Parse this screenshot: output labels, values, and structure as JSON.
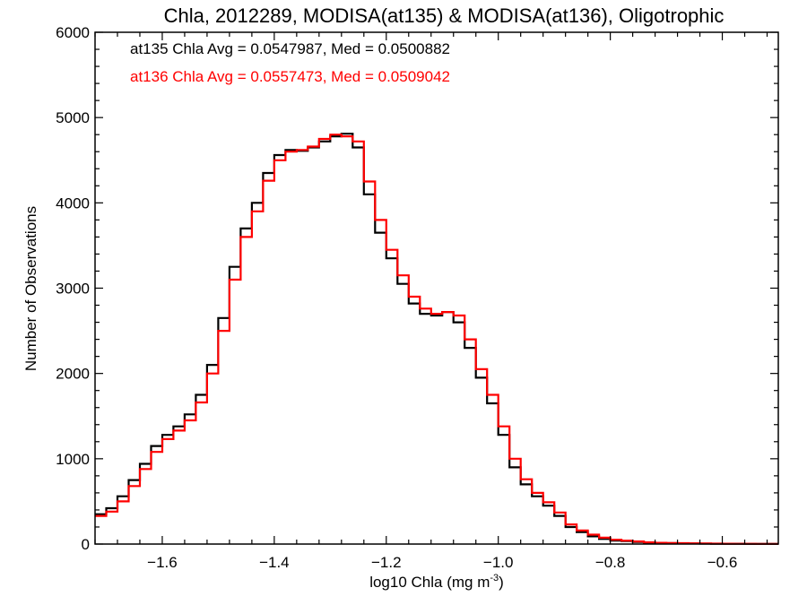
{
  "chart_data": {
    "type": "line",
    "title": "Chla, 2012289, MODISA(at135) & MODISA(at136), Oligotrophic",
    "xlabel": "log10 Chla (mg m",
    "xlabel_sup": "-3",
    "xlabel_close": ")",
    "ylabel": "Number of Observations",
    "xlim": [
      -1.72,
      -0.5
    ],
    "ylim": [
      0,
      6000
    ],
    "x_ticks": [
      -1.6,
      -1.4,
      -1.2,
      -1.0,
      -0.8,
      -0.6
    ],
    "x_tick_labels": [
      "−1.6",
      "−1.4",
      "−1.2",
      "−1.0",
      "−0.8",
      "−0.6"
    ],
    "y_ticks": [
      0,
      1000,
      2000,
      3000,
      4000,
      5000,
      6000
    ],
    "y_tick_labels": [
      "0",
      "1000",
      "2000",
      "3000",
      "4000",
      "5000",
      "6000"
    ],
    "grid": false,
    "annotations": [
      {
        "text": "at135 Chla Avg = 0.0547987, Med = 0.0500882",
        "color": "#000000"
      },
      {
        "text": "at136 Chla Avg = 0.0557473, Med = 0.0509042",
        "color": "#ff0000"
      }
    ],
    "series": [
      {
        "color": "#000000",
        "x": [
          -1.72,
          -1.7,
          -1.68,
          -1.66,
          -1.64,
          -1.62,
          -1.6,
          -1.58,
          -1.56,
          -1.54,
          -1.52,
          -1.5,
          -1.48,
          -1.46,
          -1.44,
          -1.42,
          -1.4,
          -1.38,
          -1.36,
          -1.34,
          -1.32,
          -1.3,
          -1.28,
          -1.26,
          -1.24,
          -1.22,
          -1.2,
          -1.18,
          -1.16,
          -1.14,
          -1.12,
          -1.1,
          -1.08,
          -1.06,
          -1.04,
          -1.02,
          -1.0,
          -0.98,
          -0.96,
          -0.94,
          -0.92,
          -0.9,
          -0.88,
          -0.86,
          -0.84,
          -0.82,
          -0.8,
          -0.78,
          -0.76,
          -0.74,
          -0.72,
          -0.7,
          -0.68,
          -0.66,
          -0.64,
          -0.62,
          -0.6,
          -0.58,
          -0.56,
          -0.54,
          -0.52,
          -0.5
        ],
        "y": [
          350,
          420,
          560,
          750,
          940,
          1150,
          1280,
          1380,
          1520,
          1750,
          2100,
          2650,
          3250,
          3700,
          4000,
          4350,
          4560,
          4620,
          4610,
          4650,
          4720,
          4780,
          4810,
          4650,
          4100,
          3650,
          3350,
          3050,
          2820,
          2700,
          2680,
          2720,
          2600,
          2300,
          1950,
          1650,
          1280,
          900,
          700,
          560,
          450,
          330,
          200,
          140,
          90,
          60,
          40,
          35,
          25,
          15,
          12,
          10,
          8,
          6,
          5,
          4,
          3,
          3,
          2,
          2,
          2,
          1
        ]
      },
      {
        "color": "#ff0000",
        "x": [
          -1.72,
          -1.7,
          -1.68,
          -1.66,
          -1.64,
          -1.62,
          -1.6,
          -1.58,
          -1.56,
          -1.54,
          -1.52,
          -1.5,
          -1.48,
          -1.46,
          -1.44,
          -1.42,
          -1.4,
          -1.38,
          -1.36,
          -1.34,
          -1.32,
          -1.3,
          -1.28,
          -1.26,
          -1.24,
          -1.22,
          -1.2,
          -1.18,
          -1.16,
          -1.14,
          -1.12,
          -1.1,
          -1.08,
          -1.06,
          -1.04,
          -1.02,
          -1.0,
          -0.98,
          -0.96,
          -0.94,
          -0.92,
          -0.9,
          -0.88,
          -0.86,
          -0.84,
          -0.82,
          -0.8,
          -0.78,
          -0.76,
          -0.74,
          -0.72,
          -0.7,
          -0.68,
          -0.66,
          -0.64,
          -0.62,
          -0.6,
          -0.58,
          -0.56,
          -0.54,
          -0.52,
          -0.5
        ],
        "y": [
          330,
          380,
          500,
          680,
          880,
          1080,
          1230,
          1330,
          1450,
          1660,
          2000,
          2500,
          3100,
          3600,
          3900,
          4260,
          4500,
          4600,
          4620,
          4660,
          4750,
          4800,
          4780,
          4720,
          4250,
          3800,
          3450,
          3150,
          2900,
          2760,
          2700,
          2720,
          2680,
          2400,
          2050,
          1750,
          1380,
          1000,
          760,
          600,
          490,
          370,
          230,
          160,
          110,
          75,
          50,
          40,
          30,
          20,
          15,
          12,
          10,
          8,
          6,
          5,
          4,
          3,
          3,
          2,
          2,
          1
        ]
      }
    ]
  }
}
